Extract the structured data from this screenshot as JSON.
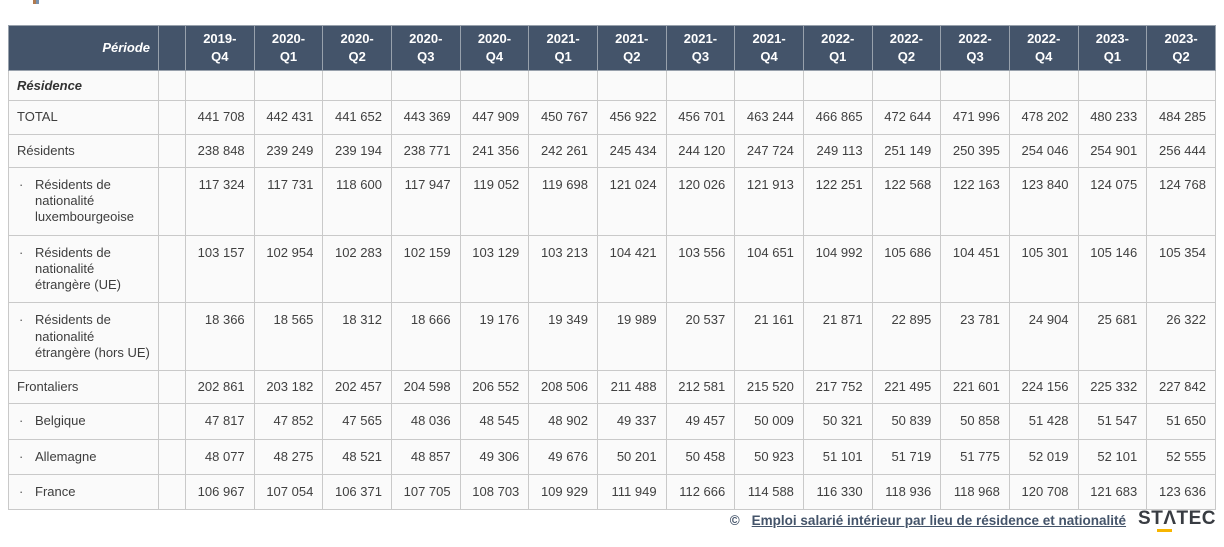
{
  "chart_data": {
    "type": "table",
    "period_label": "Période",
    "bullet_char": "·",
    "columns": [
      "2019-Q4",
      "2020-Q1",
      "2020-Q2",
      "2020-Q3",
      "2020-Q4",
      "2021-Q1",
      "2021-Q2",
      "2021-Q3",
      "2021-Q4",
      "2022-Q1",
      "2022-Q2",
      "2022-Q3",
      "2022-Q4",
      "2023-Q1",
      "2023-Q2"
    ],
    "rows": [
      {
        "label": "Résidence",
        "kind": "section",
        "values": []
      },
      {
        "label": "TOTAL",
        "kind": "plain",
        "values": [
          "441 708",
          "442 431",
          "441 652",
          "443 369",
          "447 909",
          "450 767",
          "456 922",
          "456 701",
          "463 244",
          "466 865",
          "472 644",
          "471 996",
          "478 202",
          "480 233",
          "484 285"
        ]
      },
      {
        "label": "Résidents",
        "kind": "plain",
        "values": [
          "238 848",
          "239 249",
          "239 194",
          "238 771",
          "241 356",
          "242 261",
          "245 434",
          "244 120",
          "247 724",
          "249 113",
          "251 149",
          "250 395",
          "254 046",
          "254 901",
          "256 444"
        ]
      },
      {
        "label": "Résidents de nationalité luxembourgeoise",
        "kind": "bullet",
        "values": [
          "117 324",
          "117 731",
          "118 600",
          "117 947",
          "119 052",
          "119 698",
          "121 024",
          "120 026",
          "121 913",
          "122 251",
          "122 568",
          "122 163",
          "123 840",
          "124 075",
          "124 768"
        ]
      },
      {
        "label": "Résidents de nationalité étrangère (UE)",
        "kind": "bullet",
        "values": [
          "103 157",
          "102 954",
          "102 283",
          "102 159",
          "103 129",
          "103 213",
          "104 421",
          "103 556",
          "104 651",
          "104 992",
          "105 686",
          "104 451",
          "105 301",
          "105 146",
          "105 354"
        ]
      },
      {
        "label": "Résidents de nationalité étrangère (hors UE)",
        "kind": "bullet",
        "values": [
          "18 366",
          "18 565",
          "18 312",
          "18 666",
          "19 176",
          "19 349",
          "19 989",
          "20 537",
          "21 161",
          "21 871",
          "22 895",
          "23 781",
          "24 904",
          "25 681",
          "26 322"
        ]
      },
      {
        "label": "Frontaliers",
        "kind": "plain",
        "values": [
          "202 861",
          "203 182",
          "202 457",
          "204 598",
          "206 552",
          "208 506",
          "211 488",
          "212 581",
          "215 520",
          "217 752",
          "221 495",
          "221 601",
          "224 156",
          "225 332",
          "227 842"
        ]
      },
      {
        "label": "Belgique",
        "kind": "bullet",
        "values": [
          "47 817",
          "47 852",
          "47 565",
          "48 036",
          "48 545",
          "48 902",
          "49 337",
          "49 457",
          "50 009",
          "50 321",
          "50 839",
          "50 858",
          "51 428",
          "51 547",
          "51 650"
        ]
      },
      {
        "label": "Allemagne",
        "kind": "bullet",
        "values": [
          "48 077",
          "48 275",
          "48 521",
          "48 857",
          "49 306",
          "49 676",
          "50 201",
          "50 458",
          "50 923",
          "51 101",
          "51 719",
          "51 775",
          "52 019",
          "52 101",
          "52 555"
        ]
      },
      {
        "label": "France",
        "kind": "bullet",
        "values": [
          "106 967",
          "107 054",
          "106 371",
          "107 705",
          "108 703",
          "109 929",
          "111 949",
          "112 666",
          "114 588",
          "116 330",
          "118 936",
          "118 968",
          "120 708",
          "121 683",
          "123 636"
        ]
      }
    ]
  },
  "footer": {
    "copyright_symbol": "©",
    "source_link": "Emploi salarié intérieur par lieu de résidence et nationalité",
    "logo_text": "STΛTEC",
    "logo_accent_color": "#f7b500"
  },
  "colors": {
    "header_bg": "#44546A",
    "header_text": "#ffffff",
    "body_bg": "#fafafa",
    "border": "#c9c9c9",
    "link": "#44546a"
  }
}
